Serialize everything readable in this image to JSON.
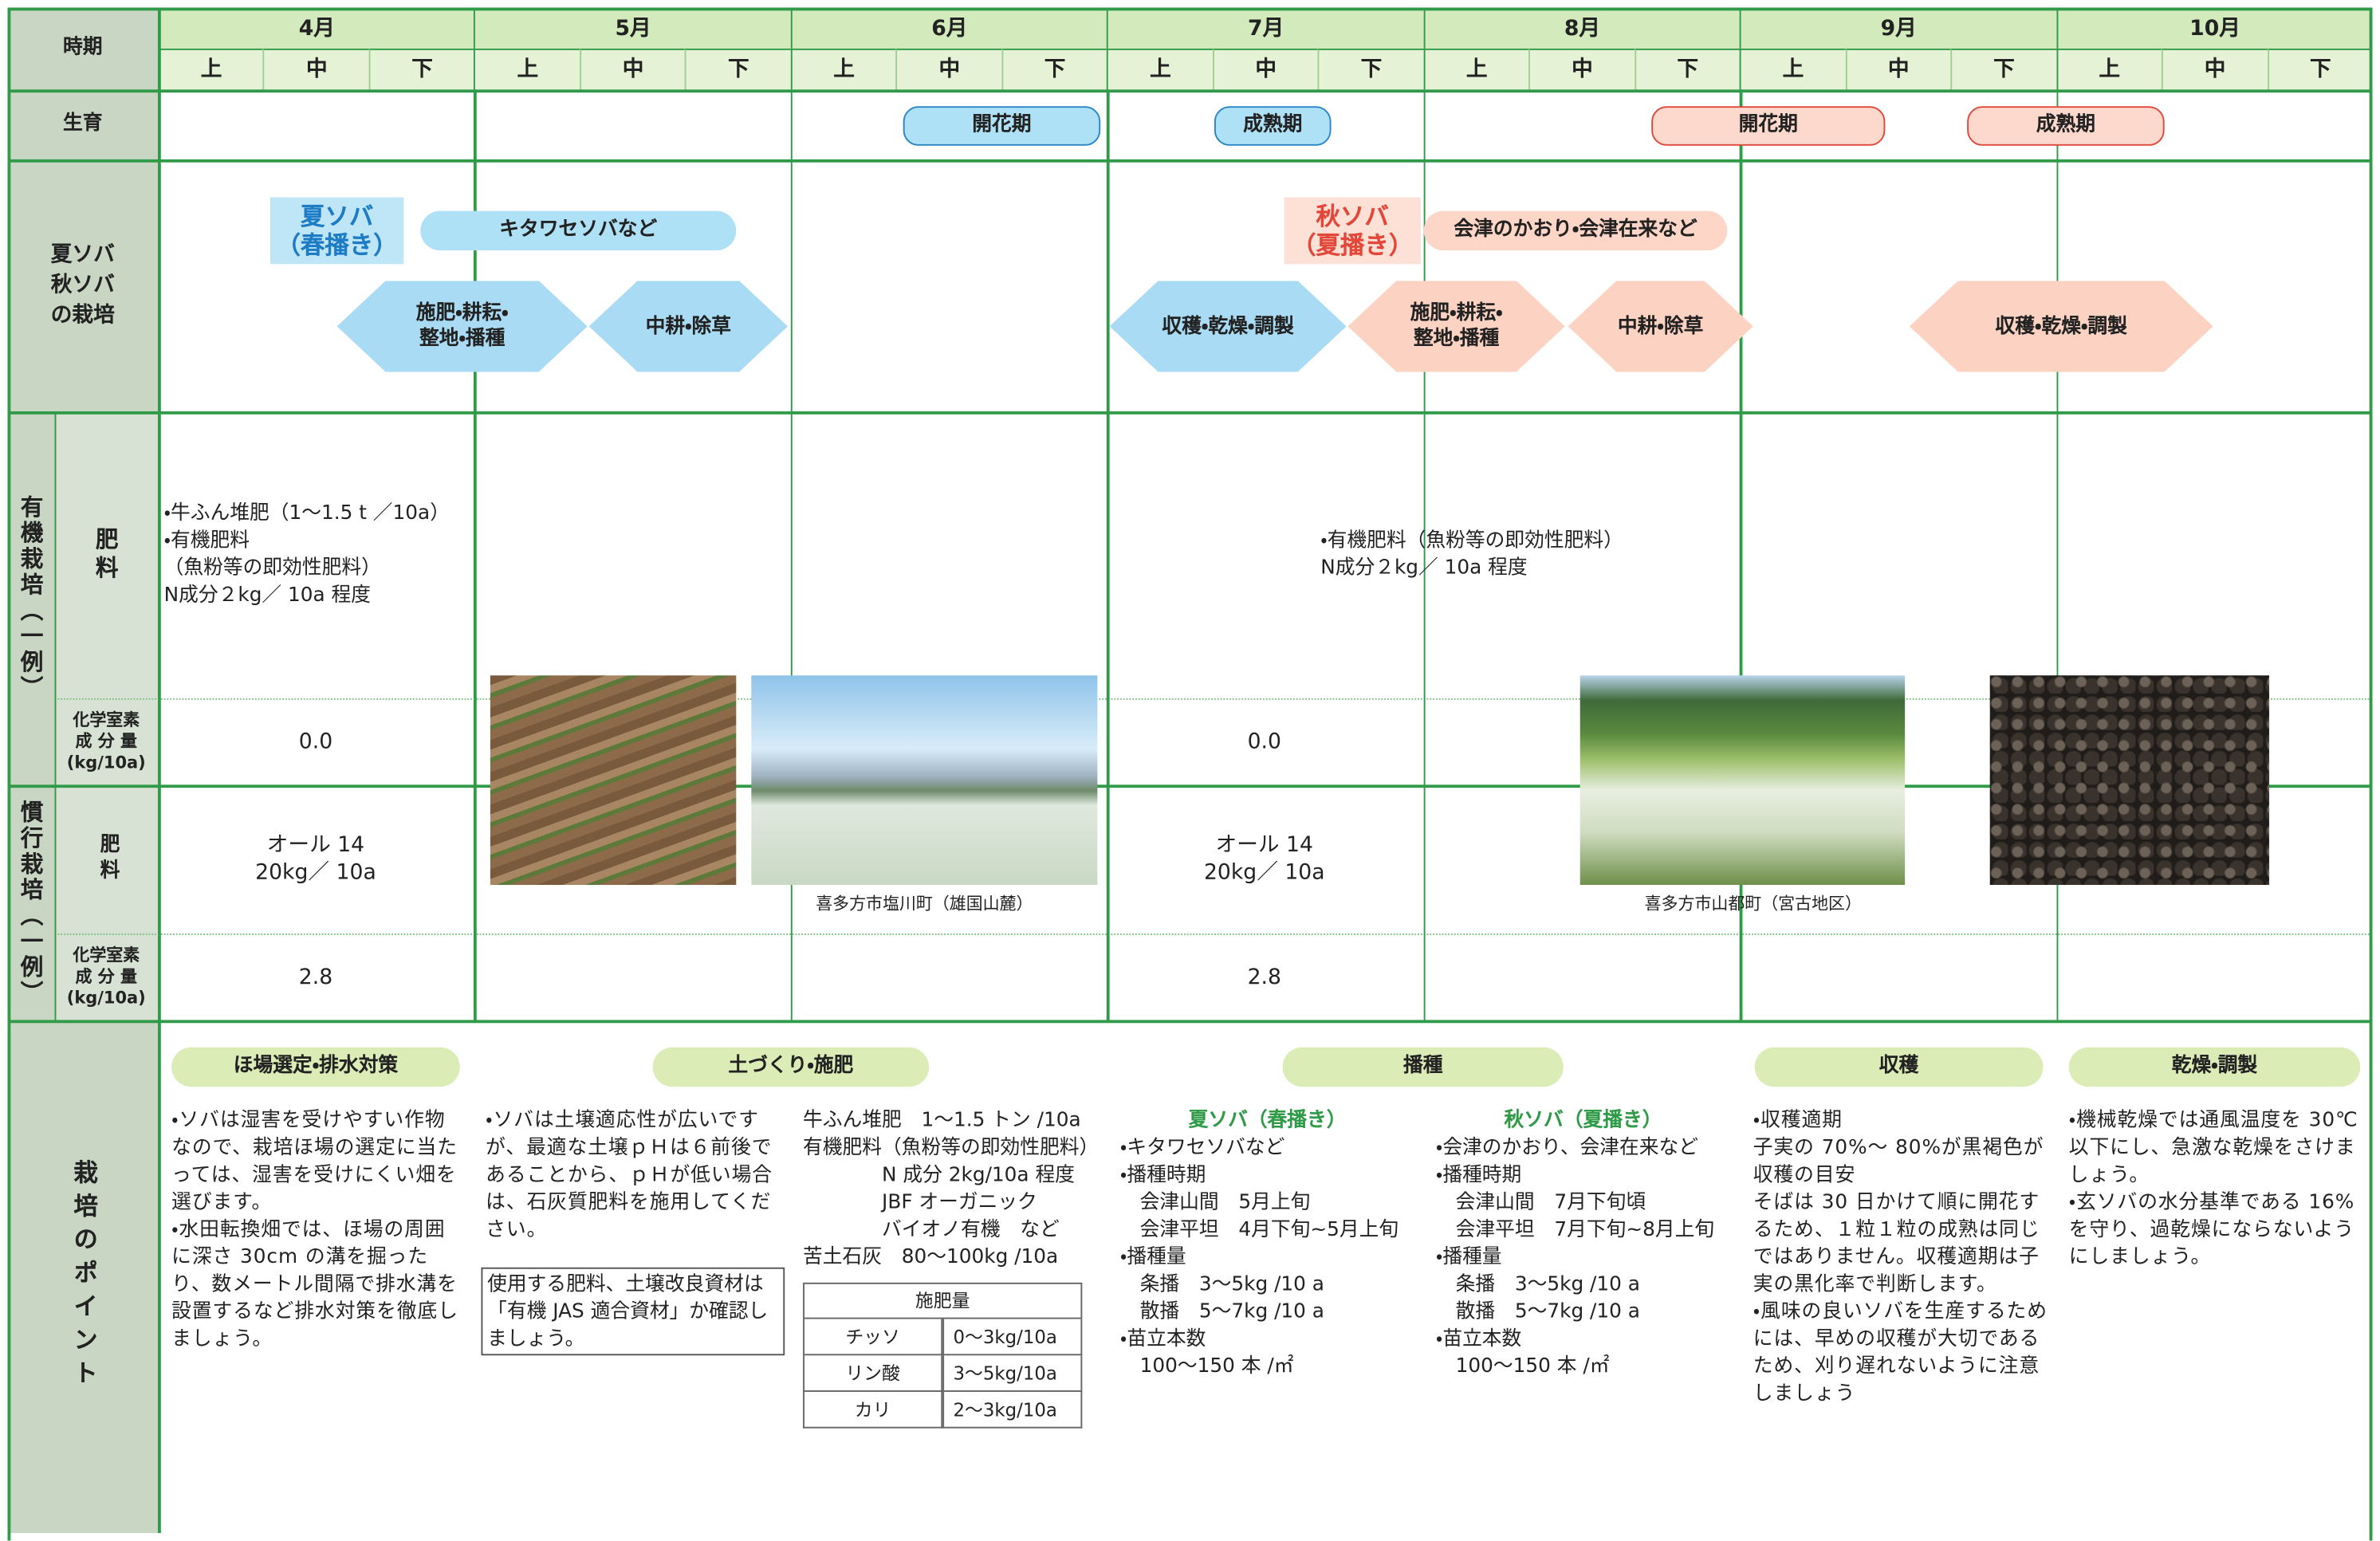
{
  "header": {
    "period": "時期",
    "months": [
      "4月",
      "5月",
      "6月",
      "7月",
      "8月",
      "9月",
      "10月"
    ],
    "thirds": [
      "上",
      "中",
      "下"
    ]
  },
  "growth": {
    "label": "生育",
    "stages": [
      "開花期",
      "成熟期",
      "開花期",
      "成熟期"
    ]
  },
  "cultivation": {
    "label": "夏ソバ\n秋ソバ\nの栽培",
    "summer": {
      "title": "夏ソバ\n（春播き）",
      "variety": "キタワセソバなど",
      "steps": [
        "施肥・耕耘・\n整地・播種",
        "中耕・除草",
        "収穫・乾燥・調製"
      ]
    },
    "autumn": {
      "title": "秋ソバ\n（夏播き）",
      "variety": "会津のかおり・会津在来など",
      "steps": [
        "施肥・耕耘・\n整地・播種",
        "中耕・除草",
        "収穫・乾燥・調製"
      ]
    }
  },
  "organic": {
    "label": "有機栽培（一例）",
    "fert_label": "肥料",
    "fert_spring": "・牛ふん堆肥（1～1.5 t ／10a）\n・有機肥料\n（魚粉等の即効性肥料）\nN成分２kg／ 10a 程度",
    "fert_autumn": "・有機肥料（魚粉等の即効性肥料）\nN成分２kg／ 10a 程度",
    "n_label": "化学室素\n成 分 量\n(kg/10a)",
    "n_values": [
      "0.0",
      "0.0"
    ]
  },
  "conventional": {
    "label": "慣行栽培（一例）",
    "fert_label": "肥料",
    "fert_values": [
      "オール 14\n20kg／ 10a",
      "オール 14\n20kg／ 10a"
    ],
    "n_label": "化学室素\n成 分 量\n(kg/10a)",
    "n_values": [
      "2.8",
      "2.8"
    ]
  },
  "photos": {
    "captions": [
      "喜多方市塩川町（雄国山麓）",
      "喜多方市山都町（宮古地区）"
    ]
  },
  "points": {
    "label": "栽培のポイント",
    "headings": [
      "ほ場選定・排水対策",
      "土づくり・施肥",
      "播種",
      "収穫",
      "乾燥・調製"
    ],
    "drainage": "・ソバは湿害を受けやすい作物なので、栽培ほ場の選定に当たっては、湿害を受けにくい畑を選びます。\n・水田転換畑では、ほ場の周囲に深さ 30cm の溝を掘ったり、数メートル間隔で排水溝を設置するなど排水対策を徹底しましょう。",
    "soil": "・ソバは土壌適応性が広いですが、最適な土壌ｐＨは６前後であることから、ｐＨが低い場合は、石灰質肥料を施用してください。",
    "soil_note": "使用する肥料、土壌改良資材は「有機 JAS 適合資材」か確認しましょう。",
    "fertilizer": "牛ふん堆肥　1～1.5 トン /10a\n有機肥料（魚粉等の即効性肥料）\n　　　　N 成分 2kg/10a 程度\n　　　　JBF オーガニック\n　　　　バイオノ有機　など\n苦土石灰　80～100kg /10a",
    "fert_table": {
      "header": "施肥量",
      "rows": [
        [
          "チッソ",
          "0～3kg/10a"
        ],
        [
          "リン酸",
          "3～5kg/10a"
        ],
        [
          "カリ",
          "2～3kg/10a"
        ]
      ]
    },
    "sowing_summer": {
      "title": "夏ソバ（春播き）",
      "text": "・キタワセソバなど\n・播種時期\n　会津山間　5月上旬\n　会津平坦　4月下旬~5月上旬\n・播種量\n　条播　3～5kg /10 a\n　散播　5～7kg /10 a\n・苗立本数\n　100～150 本 /㎡"
    },
    "sowing_autumn": {
      "title": "秋ソバ（夏播き）",
      "text": "・会津のかおり、会津在来など\n・播種時期\n　会津山間　7月下旬頃\n　会津平坦　7月下旬~8月上旬\n・播種量\n　条播　3～5kg /10 a\n　散播　5～7kg /10 a\n・苗立本数\n　100～150 本 /㎡"
    },
    "harvest": "・収穫適期\n子実の 70%～ 80%が黒褐色が収穫の目安\nそばは 30 日かけて順に開花するため、１粒１粒の成熟は同じではありません。収穫適期は子実の黒化率で判断します。\n・風味の良いソバを生産するためには、早めの収穫が大切であるため、刈り遅れないように注意しましょう",
    "drying": "・機械乾燥では通風温度を 30℃以下にし、急激な乾燥をさけましょう。\n・玄ソバの水分基準である 16%を守り、過乾燥にならないようにしましょう。"
  }
}
